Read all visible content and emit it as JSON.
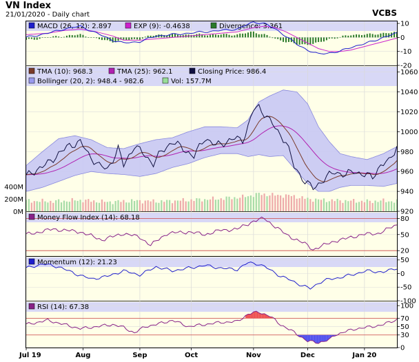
{
  "header": {
    "title": "VN Index",
    "subtitle": "21/01/2020 - Daily chart",
    "brand": "VCBS"
  },
  "x_axis": {
    "labels": [
      "Jul 19",
      "Aug",
      "Sep",
      "Oct",
      "Nov",
      "Dec",
      "Jan 20"
    ],
    "positions": [
      0,
      21,
      42,
      61,
      84,
      104,
      125
    ],
    "count": 138
  },
  "panels": {
    "macd": {
      "legend": [
        {
          "label": "MACD (26, 12): 2.897",
          "color": "#1e1ecc"
        },
        {
          "label": "EXP (9): -0.4638",
          "color": "#cc22cc"
        },
        {
          "label": "Divergence: 3.361",
          "color": "#2a7a2a"
        }
      ],
      "ticks": [
        "10",
        "0",
        "-10",
        "-20"
      ]
    },
    "price": {
      "legend": [
        {
          "label": "TMA (10): 968.3",
          "color": "#7a3a2a"
        },
        {
          "label": "TMA (25): 962.1",
          "color": "#b020b0"
        },
        {
          "label": "Closing Price: 986.4",
          "color": "#101040"
        },
        {
          "label": "Bollinger (20, 2): 948.4 - 982.6",
          "color": "#9999ee"
        },
        {
          "label": "Vol: 157.7M",
          "color": "#99dd99"
        }
      ],
      "ticks": [
        "1060",
        "1040",
        "1020",
        "1000",
        "980",
        "960",
        "940",
        "920"
      ],
      "vol_ticks": [
        "400M",
        "200M",
        "0M"
      ]
    },
    "mfi": {
      "legend": [
        {
          "label": "Money Flow Index (14): 68.18",
          "color": "#882288"
        }
      ],
      "ticks": [
        "80",
        "50",
        "20"
      ]
    },
    "momentum": {
      "legend": [
        {
          "label": "Momentum (12): 21.23",
          "color": "#1e1ecc"
        }
      ],
      "ticks": [
        "50",
        "0",
        "-50",
        "-100"
      ]
    },
    "rsi": {
      "legend": [
        {
          "label": "RSI (14): 67.38",
          "color": "#882288"
        }
      ],
      "ticks": [
        "100",
        "70",
        "50",
        "30",
        "0"
      ]
    }
  },
  "chart_data": {
    "type": "line",
    "title": "VN Index",
    "x": [
      "Jul 19",
      "Aug",
      "Sep",
      "Oct",
      "Nov",
      "Dec",
      "Jan 20"
    ],
    "price_anchors": [
      [
        0,
        955
      ],
      [
        4,
        962
      ],
      [
        8,
        968
      ],
      [
        12,
        978
      ],
      [
        16,
        986
      ],
      [
        20,
        990
      ],
      [
        23,
        977
      ],
      [
        27,
        966
      ],
      [
        30,
        962
      ],
      [
        34,
        983
      ],
      [
        36,
        966
      ],
      [
        40,
        986
      ],
      [
        44,
        976
      ],
      [
        47,
        968
      ],
      [
        50,
        980
      ],
      [
        54,
        990
      ],
      [
        58,
        983
      ],
      [
        62,
        975
      ],
      [
        66,
        994
      ],
      [
        70,
        986
      ],
      [
        74,
        990
      ],
      [
        77,
        993
      ],
      [
        80,
        992
      ],
      [
        82,
        1005
      ],
      [
        84,
        1022
      ],
      [
        86,
        1025
      ],
      [
        89,
        1015
      ],
      [
        93,
        1000
      ],
      [
        96,
        990
      ],
      [
        99,
        965
      ],
      [
        103,
        950
      ],
      [
        106,
        943
      ],
      [
        110,
        952
      ],
      [
        114,
        960
      ],
      [
        118,
        956
      ],
      [
        121,
        961
      ],
      [
        125,
        956
      ],
      [
        128,
        955
      ],
      [
        131,
        966
      ],
      [
        134,
        970
      ],
      [
        137,
        986
      ]
    ],
    "bollinger_upper_anchors": [
      [
        0,
        966
      ],
      [
        6,
        980
      ],
      [
        12,
        993
      ],
      [
        18,
        996
      ],
      [
        24,
        992
      ],
      [
        30,
        984
      ],
      [
        36,
        983
      ],
      [
        42,
        988
      ],
      [
        48,
        992
      ],
      [
        54,
        994
      ],
      [
        60,
        1000
      ],
      [
        66,
        1005
      ],
      [
        72,
        1005
      ],
      [
        78,
        1004
      ],
      [
        82,
        1012
      ],
      [
        86,
        1030
      ],
      [
        90,
        1036
      ],
      [
        95,
        1042
      ],
      [
        100,
        1040
      ],
      [
        104,
        1028
      ],
      [
        108,
        1005
      ],
      [
        112,
        990
      ],
      [
        116,
        978
      ],
      [
        120,
        975
      ],
      [
        126,
        972
      ],
      [
        132,
        978
      ],
      [
        137,
        985
      ]
    ],
    "bollinger_lower_anchors": [
      [
        0,
        940
      ],
      [
        6,
        944
      ],
      [
        12,
        950
      ],
      [
        18,
        956
      ],
      [
        24,
        960
      ],
      [
        30,
        958
      ],
      [
        36,
        957
      ],
      [
        42,
        955
      ],
      [
        48,
        958
      ],
      [
        54,
        964
      ],
      [
        60,
        968
      ],
      [
        66,
        974
      ],
      [
        72,
        978
      ],
      [
        78,
        978
      ],
      [
        82,
        975
      ],
      [
        86,
        977
      ],
      [
        90,
        975
      ],
      [
        95,
        976
      ],
      [
        100,
        960
      ],
      [
        104,
        948
      ],
      [
        108,
        940
      ],
      [
        112,
        940
      ],
      [
        116,
        944
      ],
      [
        120,
        946
      ],
      [
        126,
        946
      ],
      [
        132,
        945
      ],
      [
        137,
        948
      ]
    ],
    "macd_anchors": [
      [
        0,
        0
      ],
      [
        8,
        3
      ],
      [
        14,
        6
      ],
      [
        20,
        8
      ],
      [
        26,
        3
      ],
      [
        32,
        -2
      ],
      [
        36,
        -4
      ],
      [
        42,
        -3
      ],
      [
        48,
        1
      ],
      [
        54,
        2
      ],
      [
        60,
        3
      ],
      [
        66,
        4
      ],
      [
        72,
        5
      ],
      [
        78,
        6
      ],
      [
        84,
        11
      ],
      [
        88,
        10
      ],
      [
        92,
        6
      ],
      [
        96,
        1
      ],
      [
        100,
        -5
      ],
      [
        104,
        -9
      ],
      [
        108,
        -12
      ],
      [
        112,
        -11
      ],
      [
        116,
        -10
      ],
      [
        120,
        -7
      ],
      [
        126,
        -4
      ],
      [
        132,
        0
      ],
      [
        137,
        3
      ]
    ],
    "exp_anchors": [
      [
        0,
        2
      ],
      [
        8,
        3
      ],
      [
        14,
        5
      ],
      [
        20,
        6
      ],
      [
        26,
        4
      ],
      [
        32,
        1
      ],
      [
        36,
        -2
      ],
      [
        42,
        -2
      ],
      [
        48,
        -1
      ],
      [
        54,
        0
      ],
      [
        60,
        1
      ],
      [
        66,
        2
      ],
      [
        72,
        3
      ],
      [
        78,
        4
      ],
      [
        84,
        7
      ],
      [
        88,
        8
      ],
      [
        92,
        7
      ],
      [
        96,
        4
      ],
      [
        100,
        0
      ],
      [
        104,
        -4
      ],
      [
        108,
        -8
      ],
      [
        112,
        -10
      ],
      [
        116,
        -10
      ],
      [
        120,
        -9
      ],
      [
        126,
        -6
      ],
      [
        132,
        -3
      ],
      [
        137,
        -0.5
      ]
    ],
    "mfi_anchors": [
      [
        0,
        50
      ],
      [
        10,
        60
      ],
      [
        20,
        55
      ],
      [
        28,
        40
      ],
      [
        36,
        52
      ],
      [
        42,
        45
      ],
      [
        46,
        30
      ],
      [
        52,
        52
      ],
      [
        60,
        55
      ],
      [
        66,
        50
      ],
      [
        72,
        58
      ],
      [
        78,
        60
      ],
      [
        84,
        75
      ],
      [
        88,
        80
      ],
      [
        92,
        65
      ],
      [
        96,
        50
      ],
      [
        100,
        40
      ],
      [
        104,
        30
      ],
      [
        106,
        22
      ],
      [
        110,
        30
      ],
      [
        114,
        38
      ],
      [
        118,
        42
      ],
      [
        124,
        50
      ],
      [
        130,
        52
      ],
      [
        137,
        68
      ]
    ],
    "momentum_anchors": [
      [
        0,
        20
      ],
      [
        6,
        35
      ],
      [
        12,
        25
      ],
      [
        18,
        0
      ],
      [
        24,
        -20
      ],
      [
        30,
        -10
      ],
      [
        36,
        10
      ],
      [
        42,
        -5
      ],
      [
        48,
        25
      ],
      [
        54,
        10
      ],
      [
        60,
        20
      ],
      [
        66,
        30
      ],
      [
        72,
        20
      ],
      [
        78,
        15
      ],
      [
        82,
        40
      ],
      [
        86,
        35
      ],
      [
        90,
        15
      ],
      [
        94,
        -10
      ],
      [
        98,
        -25
      ],
      [
        102,
        -45
      ],
      [
        105,
        -55
      ],
      [
        108,
        -35
      ],
      [
        112,
        -20
      ],
      [
        116,
        -15
      ],
      [
        120,
        -5
      ],
      [
        126,
        10
      ],
      [
        132,
        5
      ],
      [
        137,
        21
      ]
    ],
    "rsi_anchors": [
      [
        0,
        55
      ],
      [
        8,
        65
      ],
      [
        14,
        55
      ],
      [
        20,
        45
      ],
      [
        26,
        50
      ],
      [
        32,
        55
      ],
      [
        36,
        48
      ],
      [
        40,
        35
      ],
      [
        44,
        50
      ],
      [
        48,
        55
      ],
      [
        54,
        65
      ],
      [
        60,
        50
      ],
      [
        66,
        55
      ],
      [
        72,
        60
      ],
      [
        78,
        62
      ],
      [
        82,
        80
      ],
      [
        86,
        85
      ],
      [
        90,
        75
      ],
      [
        94,
        55
      ],
      [
        98,
        40
      ],
      [
        101,
        28
      ],
      [
        104,
        15
      ],
      [
        108,
        12
      ],
      [
        112,
        18
      ],
      [
        114,
        30
      ],
      [
        118,
        38
      ],
      [
        122,
        45
      ],
      [
        128,
        50
      ],
      [
        132,
        55
      ],
      [
        137,
        67
      ]
    ],
    "volume_anchors": [
      [
        0,
        170
      ],
      [
        10,
        160
      ],
      [
        20,
        180
      ],
      [
        30,
        150
      ],
      [
        40,
        170
      ],
      [
        50,
        160
      ],
      [
        60,
        180
      ],
      [
        70,
        200
      ],
      [
        80,
        230
      ],
      [
        86,
        280
      ],
      [
        92,
        260
      ],
      [
        98,
        250
      ],
      [
        104,
        200
      ],
      [
        110,
        180
      ],
      [
        118,
        170
      ],
      [
        126,
        160
      ],
      [
        132,
        170
      ],
      [
        137,
        158
      ]
    ]
  }
}
